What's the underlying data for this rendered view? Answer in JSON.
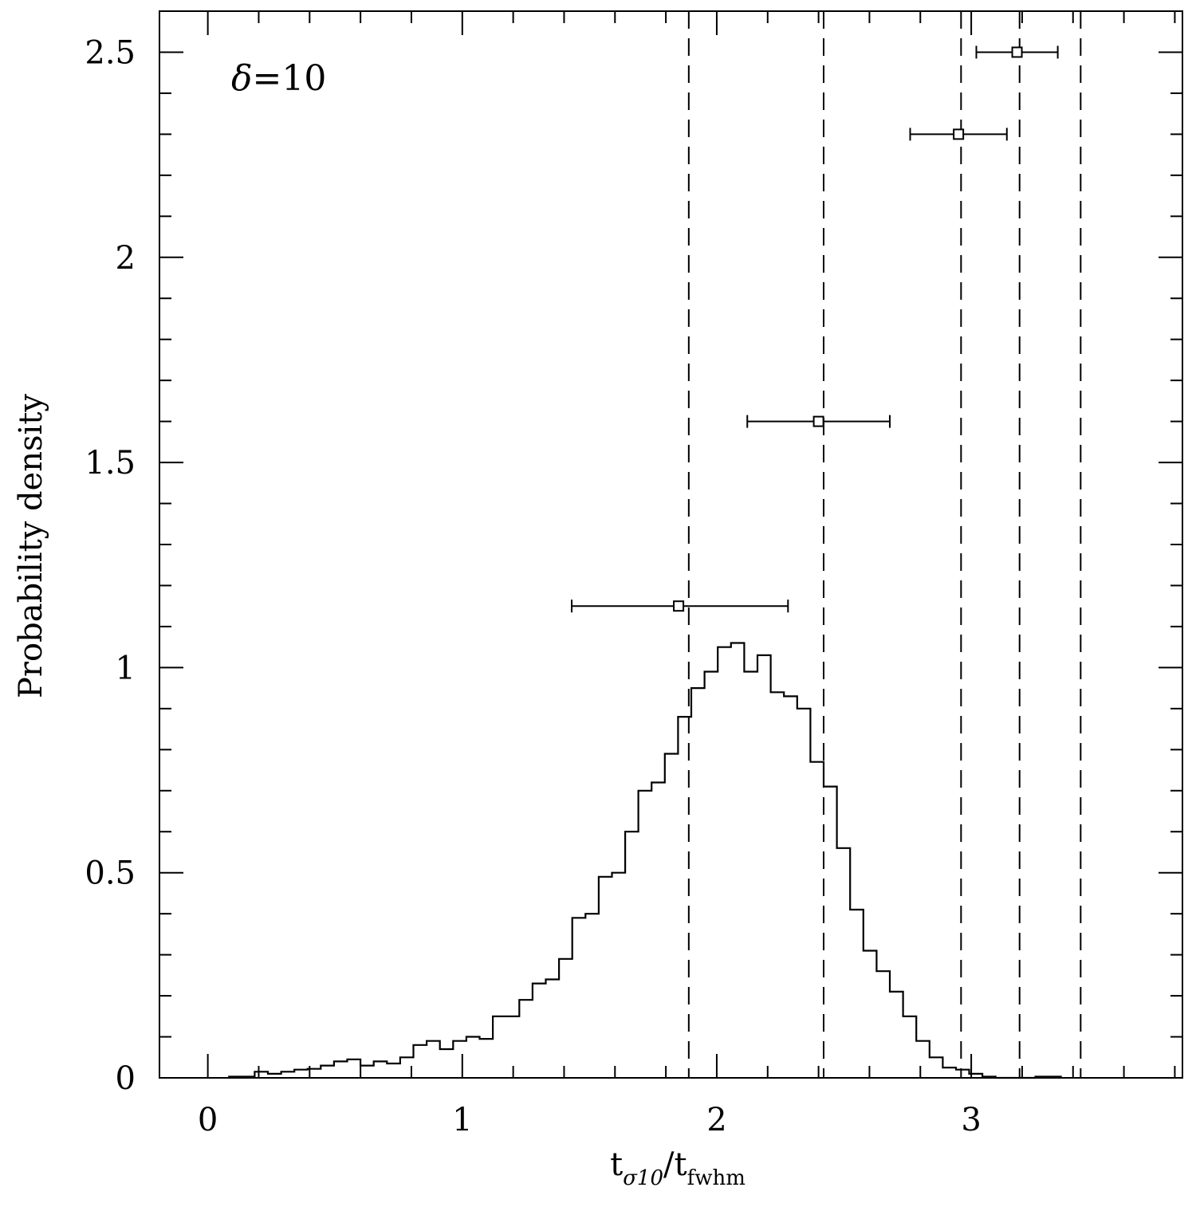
{
  "chart_data": {
    "type": "histogram",
    "xlabel": {
      "main": "t",
      "sub1": "σ10",
      "slash": "/",
      "main2": "t",
      "sub2": "fwhm"
    },
    "ylabel": "Probability density",
    "annotation": {
      "symbol": "δ",
      "text": "=10"
    },
    "xlim": [
      -0.19,
      3.83
    ],
    "ylim": [
      0,
      2.6
    ],
    "x_ticks_major": [
      0,
      1,
      2,
      3
    ],
    "x_tick_labels": [
      "0",
      "1",
      "2",
      "3"
    ],
    "x_ticks_minor": [
      0.2,
      0.4,
      0.6,
      0.8,
      1.2,
      1.4,
      1.6,
      1.8,
      2.2,
      2.4,
      2.6,
      2.8,
      3.2,
      3.4,
      3.6,
      3.8
    ],
    "y_ticks_major": [
      0,
      0.5,
      1,
      1.5,
      2,
      2.5
    ],
    "y_tick_labels": [
      "0",
      "0.5",
      "1",
      "1.5",
      "2",
      "2.5"
    ],
    "y_ticks_minor": [
      0.1,
      0.2,
      0.3,
      0.4,
      0.6,
      0.7,
      0.8,
      0.9,
      1.1,
      1.2,
      1.3,
      1.4,
      1.6,
      1.7,
      1.8,
      1.9,
      2.1,
      2.2,
      2.3,
      2.4
    ],
    "histogram": {
      "bin_width": 0.052,
      "start": 0.08,
      "values": [
        0.003,
        0.003,
        0.015,
        0.01,
        0.015,
        0.02,
        0.022,
        0.03,
        0.04,
        0.045,
        0.03,
        0.04,
        0.035,
        0.05,
        0.08,
        0.09,
        0.07,
        0.09,
        0.1,
        0.095,
        0.15,
        0.15,
        0.19,
        0.23,
        0.24,
        0.29,
        0.39,
        0.4,
        0.49,
        0.5,
        0.6,
        0.7,
        0.72,
        0.79,
        0.88,
        0.95,
        0.99,
        1.05,
        1.06,
        0.99,
        1.03,
        0.94,
        0.93,
        0.9,
        0.77,
        0.71,
        0.56,
        0.41,
        0.31,
        0.26,
        0.21,
        0.15,
        0.09,
        0.05,
        0.025,
        0.02,
        0.01,
        0.003,
        0,
        0,
        0,
        0.003,
        0.003
      ]
    },
    "vlines": [
      1.89,
      2.42,
      2.96,
      3.19,
      3.43
    ],
    "points": [
      {
        "x": 1.85,
        "y": 1.15,
        "xerr_low": 1.43,
        "xerr_high": 2.28
      },
      {
        "x": 2.4,
        "y": 1.6,
        "xerr_low": 2.12,
        "xerr_high": 2.68
      },
      {
        "x": 2.95,
        "y": 2.3,
        "xerr_low": 2.76,
        "xerr_high": 3.14
      },
      {
        "x": 3.18,
        "y": 2.5,
        "xerr_low": 3.02,
        "xerr_high": 3.34
      }
    ]
  }
}
